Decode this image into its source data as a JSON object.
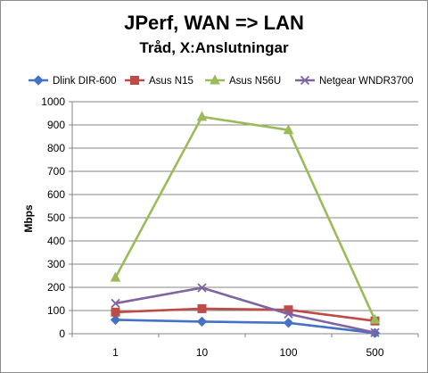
{
  "chart_data": {
    "type": "line",
    "title": "JPerf, WAN => LAN",
    "subtitle": "Tråd, X:Anslutningar",
    "xlabel": "",
    "ylabel": "Mbps",
    "categories": [
      "1",
      "10",
      "100",
      "500"
    ],
    "ylim": [
      0,
      1000
    ],
    "yticks": [
      "0",
      "100",
      "200",
      "300",
      "400",
      "500",
      "600",
      "700",
      "800",
      "900",
      "1000"
    ],
    "grid": "horizontal",
    "legend_position": "top",
    "series": [
      {
        "name": "Dlink DIR-600",
        "color": "#4472C4",
        "marker": "diamond",
        "values": [
          60,
          52,
          47,
          3
        ]
      },
      {
        "name": "Asus N15",
        "color": "#BE4B48",
        "marker": "square",
        "values": [
          93,
          108,
          103,
          55
        ]
      },
      {
        "name": "Asus N56U",
        "color": "#9BBB59",
        "marker": "triangle",
        "values": [
          242,
          935,
          878,
          60
        ]
      },
      {
        "name": "Netgear WNDR3700",
        "color": "#8064A2",
        "marker": "x",
        "values": [
          131,
          198,
          85,
          5
        ]
      }
    ]
  }
}
